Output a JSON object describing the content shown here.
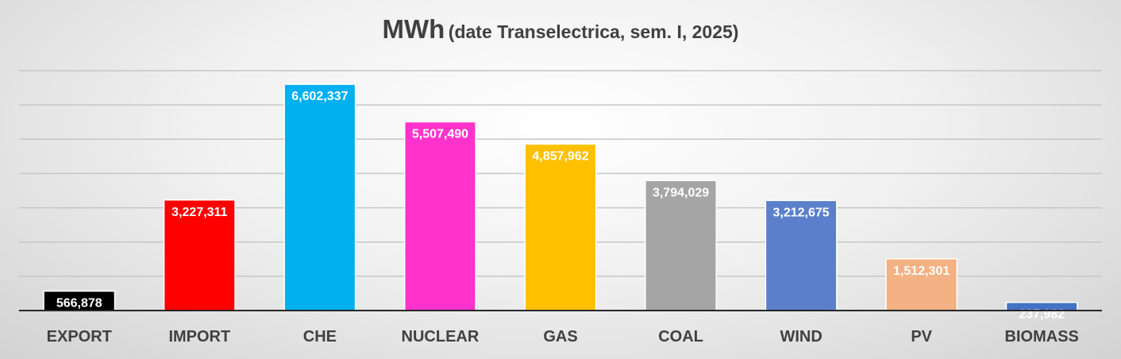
{
  "chart_data": {
    "type": "bar",
    "title": "MWh",
    "subtitle": "(date Transelectrica, sem. I, 2025)",
    "categories": [
      "EXPORT",
      "IMPORT",
      "CHE",
      "NUCLEAR",
      "GAS",
      "COAL",
      "WIND",
      "PV",
      "BIOMASS"
    ],
    "values": [
      566878,
      3227311,
      6602337,
      5507490,
      4857962,
      3794029,
      3212675,
      1512301,
      237982
    ],
    "data_labels": [
      "566,878",
      "3,227,311",
      "6,602,337",
      "5,507,490",
      "4,857,962",
      "3,794,029",
      "3,212,675",
      "1,512,301",
      "237,982"
    ],
    "colors": [
      "#000000",
      "#ff0000",
      "#00b0f0",
      "#ff33cc",
      "#ffc000",
      "#a5a5a5",
      "#5b7fcb",
      "#f4b183",
      "#4472c4"
    ],
    "ylim": [
      0,
      7000000
    ],
    "grid": true,
    "legend": "none",
    "xlabel": "",
    "ylabel": ""
  }
}
